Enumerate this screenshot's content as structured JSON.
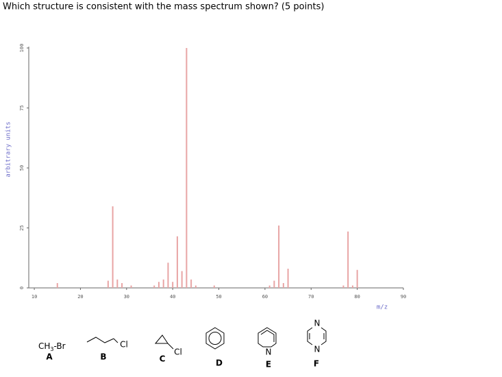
{
  "question": "Which structure is consistent with the mass spectrum shown?  (5 points)",
  "chart_data": {
    "type": "bar",
    "x_label": "m/z",
    "y_label": "arbitrary units",
    "x": [
      15,
      26,
      27,
      28,
      29,
      31,
      36,
      37,
      38,
      39,
      40,
      41,
      42,
      43,
      44,
      45,
      49,
      61,
      62,
      63,
      64,
      65,
      77,
      78,
      79,
      80
    ],
    "values": [
      2,
      3,
      34,
      3.5,
      2,
      1,
      1,
      2.5,
      3.5,
      10.5,
      2.5,
      21.5,
      7,
      100,
      3.5,
      1,
      1,
      1,
      3,
      26,
      2,
      8,
      1,
      23.5,
      1,
      7.5
    ],
    "color": "#e8a4a4",
    "xlim": [
      8.8,
      90
    ],
    "xticks": [
      10,
      20,
      30,
      40,
      50,
      60,
      70,
      80,
      90
    ],
    "ylim": [
      0,
      100
    ],
    "yticks": [
      0,
      25,
      50,
      75,
      100
    ]
  },
  "options": [
    {
      "letter": "A",
      "formula": [
        "CH",
        "3",
        "-Br"
      ]
    },
    {
      "letter": "B",
      "atoms": [
        "Cl"
      ]
    },
    {
      "letter": "C",
      "atoms": [
        "Cl"
      ]
    },
    {
      "letter": "D"
    },
    {
      "letter": "E",
      "atoms": [
        "N"
      ]
    },
    {
      "letter": "F",
      "atoms": [
        "N",
        "N"
      ]
    }
  ]
}
